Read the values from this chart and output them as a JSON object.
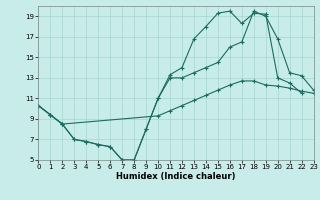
{
  "xlabel": "Humidex (Indice chaleur)",
  "bg_color": "#c8ecea",
  "grid_color": "#a8d4d0",
  "line_color": "#1a6b60",
  "xlim": [
    0,
    23
  ],
  "ylim": [
    5,
    20
  ],
  "xticks": [
    0,
    1,
    2,
    3,
    4,
    5,
    6,
    7,
    8,
    9,
    10,
    11,
    12,
    13,
    14,
    15,
    16,
    17,
    18,
    19,
    20,
    21,
    22,
    23
  ],
  "yticks": [
    5,
    7,
    9,
    11,
    13,
    15,
    17,
    19
  ],
  "line1_x": [
    0,
    1,
    2,
    3,
    4,
    5,
    6,
    7,
    8,
    9,
    10,
    11,
    12,
    13,
    14,
    15,
    16,
    17,
    18,
    19,
    20,
    21,
    22
  ],
  "line1_y": [
    10.3,
    9.4,
    8.5,
    7.0,
    6.8,
    6.5,
    6.3,
    5.0,
    5.0,
    8.0,
    11.0,
    13.3,
    14.0,
    16.8,
    18.0,
    19.3,
    19.5,
    18.3,
    19.3,
    19.2,
    13.0,
    12.5,
    11.5
  ],
  "line2_x": [
    0,
    1,
    2,
    10,
    11,
    12,
    13,
    14,
    15,
    16,
    17,
    18,
    19,
    20,
    21,
    22,
    23
  ],
  "line2_y": [
    10.3,
    9.4,
    8.5,
    9.3,
    9.8,
    10.3,
    10.8,
    11.3,
    11.8,
    12.3,
    12.7,
    12.7,
    12.3,
    12.2,
    12.0,
    11.7,
    11.5
  ],
  "line3_x": [
    0,
    1,
    2,
    3,
    4,
    5,
    6,
    7,
    8,
    9,
    10,
    11,
    12,
    13,
    14,
    15,
    16,
    17,
    18,
    19,
    20,
    21,
    22,
    23
  ],
  "line3_y": [
    10.3,
    9.4,
    8.5,
    7.0,
    6.8,
    6.5,
    6.3,
    5.0,
    5.0,
    8.0,
    11.0,
    13.0,
    13.0,
    13.5,
    14.0,
    14.5,
    16.0,
    16.5,
    19.5,
    19.0,
    16.8,
    13.5,
    13.2,
    11.8
  ]
}
